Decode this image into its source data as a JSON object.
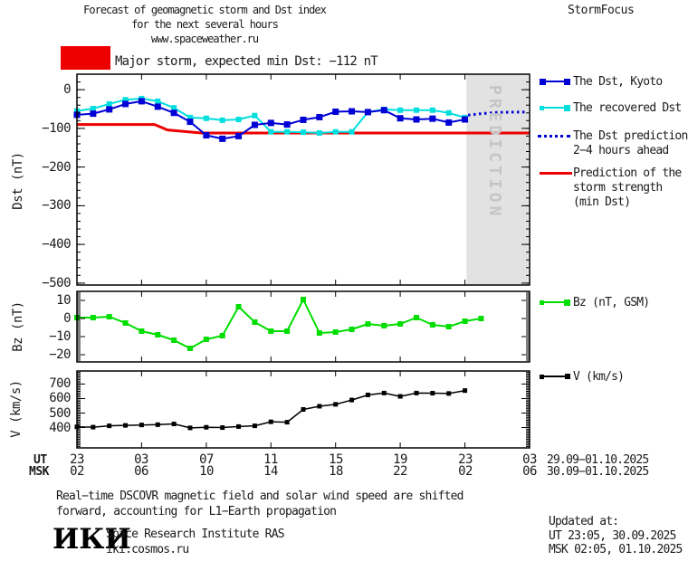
{
  "title": {
    "line1": "Forecast of geomagnetic storm and Dst index",
    "line2": "for the next several hours",
    "line3": "www.spaceweather.ru",
    "brand": "StormFocus"
  },
  "alert": {
    "label": "Major storm, expected min Dst: −112 nT"
  },
  "colors": {
    "blue": "#0000d6",
    "cyan": "#00dede",
    "red": "#ee0000",
    "green": "#00dd00",
    "black": "#000000",
    "region_fill": "#e2e2e2",
    "region_text": "#c5c5c5"
  },
  "legend": {
    "dst_kyoto": "The Dst, Kyoto",
    "recovered": "The recovered Dst",
    "prediction_line1": "The Dst prediction",
    "prediction_line2": "2−4 hours ahead",
    "strength_line1": "Prediction of the",
    "strength_line2": "storm strength",
    "strength_line3": "(min Dst)",
    "bz": "Bz (nT, GSM)",
    "v": "V (km/s)"
  },
  "prediction": {
    "label": "PREDICTION"
  },
  "axes": {
    "dst_label": "Dst (nT)",
    "bz_label": "Bz (nT)",
    "v_label": "V (km/s)",
    "ut": "UT",
    "msk": "MSK",
    "ut_hours": [
      "23",
      "03",
      "07",
      "11",
      "15",
      "19",
      "23",
      "03"
    ],
    "msk_hours": [
      "02",
      "06",
      "10",
      "14",
      "18",
      "22",
      "02",
      "06"
    ],
    "date_ut": "29.09−01.10.2025",
    "date_msk": "30.09−01.10.2025"
  },
  "footer": {
    "note_line1": "Real−time DSCOVR magnetic field and solar wind speed are shifted",
    "note_line2": "forward, accounting for L1−Earth propagation",
    "updated_title": "Updated at:",
    "updated_ut": "UT  23:05, 30.09.2025",
    "updated_msk": "MSK 02:05, 01.10.2025",
    "logo": "ИКИ",
    "institute": "Space Research Institute RAS",
    "site": "iki.cosmos.ru"
  },
  "chart_data": [
    {
      "id": "dst",
      "type": "line",
      "ylabel": "Dst (nT)",
      "xlabel_hours_ut": [
        "23",
        "03",
        "07",
        "11",
        "15",
        "19",
        "23",
        "03"
      ],
      "ylim": [
        -505,
        40
      ],
      "yticks": [
        0,
        -100,
        -200,
        -300,
        -400,
        -500
      ],
      "ytick_labels": [
        "0",
        "−100",
        "−200",
        "−300",
        "−400",
        "−500"
      ],
      "minor_step": 20,
      "xlim_hours": [
        0,
        28
      ],
      "grid": false,
      "legend_position": "right",
      "prediction_region": {
        "from_hour": 24.1,
        "to_hour": 27.9,
        "label": "PREDICTION"
      },
      "series": [
        {
          "name": "Prediction of the storm strength (min Dst)",
          "color": "#ee0000",
          "width": 3,
          "marker": false,
          "x": [
            0,
            4.8,
            5.6,
            7.7,
            28
          ],
          "values": [
            -90,
            -90,
            -104,
            -112,
            -112
          ]
        },
        {
          "name": "The recovered Dst",
          "color": "#00dede",
          "width": 2,
          "marker": true,
          "marker_size": 6,
          "x": [
            0,
            1,
            2,
            3,
            4,
            5,
            6,
            7,
            8,
            9,
            10,
            11,
            12,
            13,
            14,
            15,
            16,
            17,
            18,
            19,
            20,
            21,
            22,
            23,
            24
          ],
          "values": [
            -55,
            -49,
            -37,
            -26,
            -23,
            -30,
            -47,
            -72,
            -74,
            -79,
            -77,
            -67,
            -109,
            -109,
            -110,
            -112,
            -109,
            -109,
            -58,
            -51,
            -53,
            -53,
            -53,
            -60,
            -72
          ]
        },
        {
          "name": "The Dst, Kyoto",
          "color": "#0000d6",
          "width": 2,
          "marker": true,
          "marker_size": 7,
          "x": [
            0,
            1,
            2,
            3,
            4,
            5,
            6,
            7,
            8,
            9,
            10,
            11,
            12,
            13,
            14,
            15,
            16,
            17,
            18,
            19,
            20,
            21,
            22,
            23,
            24
          ],
          "values": [
            -65,
            -62,
            -51,
            -37,
            -30,
            -44,
            -60,
            -83,
            -118,
            -127,
            -120,
            -91,
            -86,
            -90,
            -78,
            -71,
            -57,
            -56,
            -58,
            -53,
            -74,
            -77,
            -75,
            -85,
            -77
          ]
        },
        {
          "name": "The Dst prediction 2−4 hours ahead",
          "color": "#0000d6",
          "width": 3,
          "marker": false,
          "dotted": true,
          "x": [
            24.2,
            25,
            26,
            27,
            27.7
          ],
          "values": [
            -66,
            -62,
            -59,
            -58,
            -58
          ]
        }
      ]
    },
    {
      "id": "bz",
      "type": "line",
      "ylabel": "Bz (nT)",
      "ylim": [
        -24,
        15
      ],
      "yticks": [
        10,
        0,
        -10,
        -20
      ],
      "ytick_labels": [
        "10",
        "0",
        "−10",
        "−20"
      ],
      "minor_step": 1,
      "xlim_hours": [
        0,
        28
      ],
      "grid": false,
      "series": [
        {
          "name": "Bz (nT, GSM)",
          "color": "#00dd00",
          "width": 2,
          "marker": true,
          "marker_size": 6,
          "x": [
            0,
            1,
            2,
            3,
            4,
            5,
            6,
            7,
            8,
            9,
            10,
            11,
            12,
            13,
            14,
            15,
            16,
            17,
            18,
            19,
            20,
            21,
            22,
            23,
            24,
            25
          ],
          "values": [
            0.5,
            0.5,
            1,
            -2.5,
            -7,
            -9,
            -12,
            -16.5,
            -11.5,
            -9.5,
            6.5,
            -2,
            -7,
            -7,
            10.5,
            -8,
            -7.5,
            -6,
            -3,
            -4,
            -3,
            0.5,
            -3.5,
            -4.5,
            -1.5,
            0
          ]
        }
      ]
    },
    {
      "id": "v",
      "type": "line",
      "ylabel": "V (km/s)",
      "ylim": [
        260,
        790
      ],
      "yticks": [
        700,
        600,
        500,
        400
      ],
      "ytick_labels": [
        "700",
        "600",
        "500",
        "400"
      ],
      "minor_step": 10,
      "xlim_hours": [
        0,
        28
      ],
      "grid": false,
      "series": [
        {
          "name": "V (km/s)",
          "color": "#000000",
          "width": 1.5,
          "marker": true,
          "marker_size": 5,
          "x": [
            0,
            1,
            2,
            3,
            4,
            5,
            6,
            7,
            8,
            9,
            10,
            11,
            12,
            13,
            14,
            15,
            16,
            17,
            18,
            19,
            20,
            21,
            22,
            23,
            24
          ],
          "values": [
            405,
            403,
            412,
            415,
            418,
            420,
            425,
            398,
            402,
            400,
            407,
            412,
            440,
            437,
            525,
            547,
            560,
            590,
            625,
            638,
            615,
            638,
            637,
            635,
            655
          ]
        }
      ]
    }
  ]
}
